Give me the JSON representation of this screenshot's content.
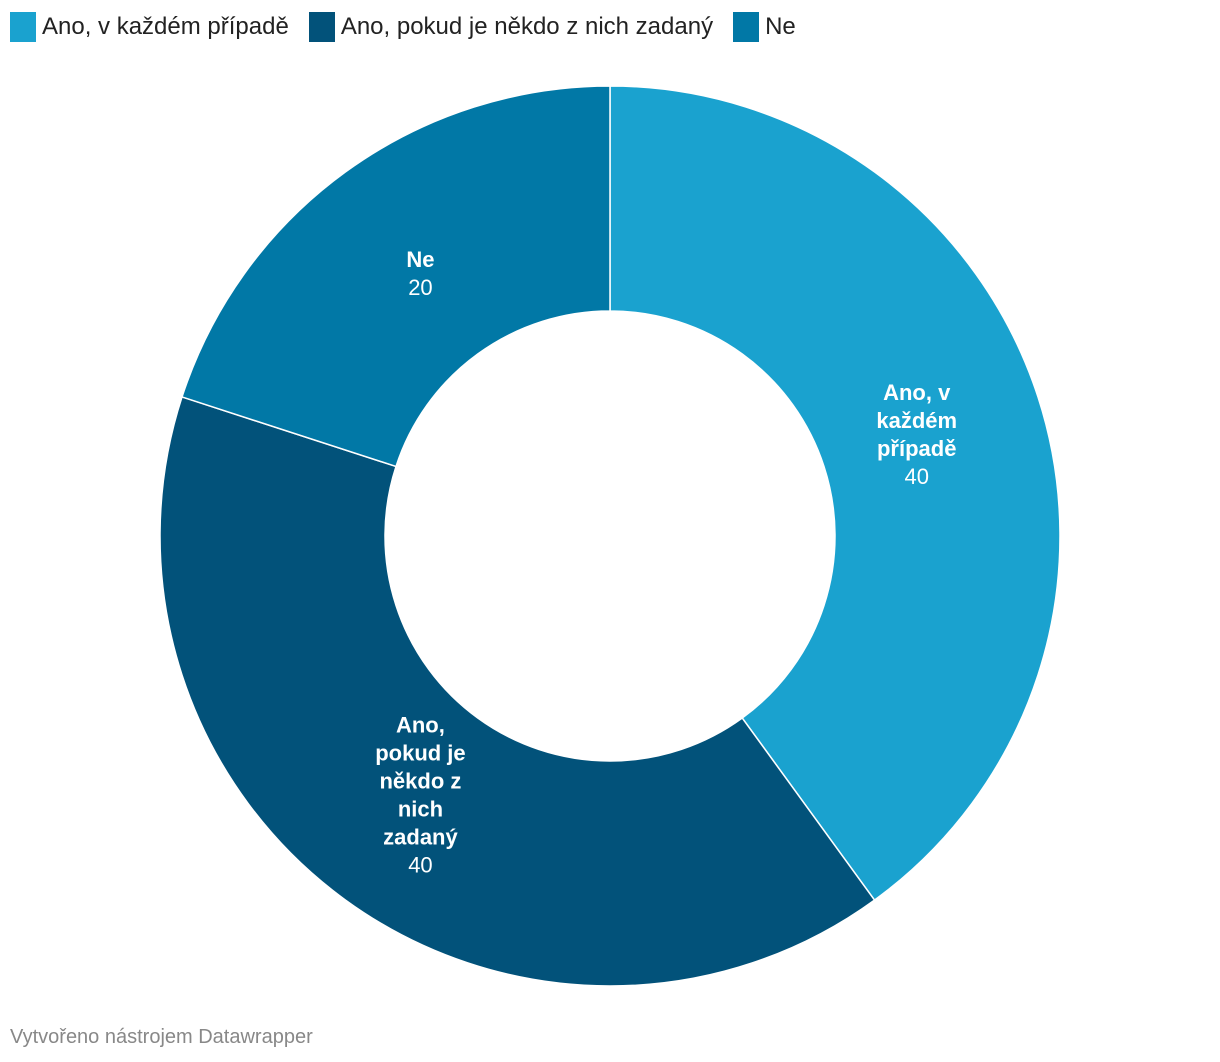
{
  "legend": [
    {
      "label": "Ano, v každém případě",
      "color": "#1aa2cf"
    },
    {
      "label": "Ano, pokud je někdo z nich zadaný",
      "color": "#02527a"
    },
    {
      "label": "Ne",
      "color": "#0178a6"
    }
  ],
  "chart_data": {
    "type": "pie",
    "variant": "donut",
    "title": "",
    "slices": [
      {
        "label": "Ano, v každém případě",
        "label_lines": [
          "Ano, v",
          "každém",
          "případě"
        ],
        "value": 40,
        "color": "#1aa2cf"
      },
      {
        "label": "Ano, pokud je někdo z nich zadaný",
        "label_lines": [
          "Ano,",
          "pokud je",
          "někdo z",
          "nich",
          "zadaný"
        ],
        "value": 40,
        "color": "#02527a"
      },
      {
        "label": "Ne",
        "label_lines": [
          "Ne"
        ],
        "value": 20,
        "color": "#0178a6"
      }
    ]
  },
  "footer": {
    "credit": "Vytvořeno nástrojem Datawrapper"
  }
}
